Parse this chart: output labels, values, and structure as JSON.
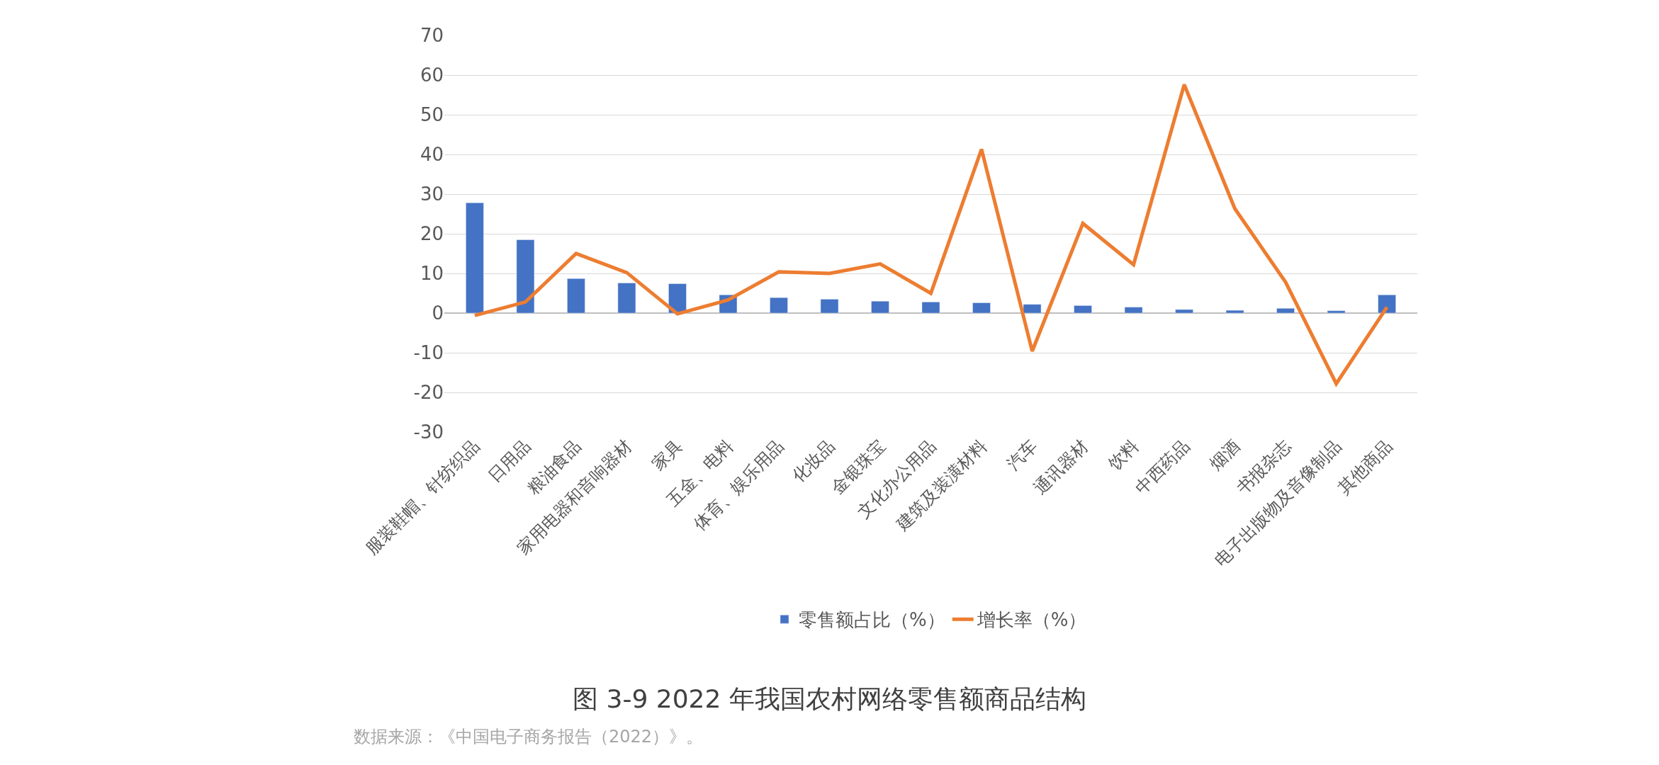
{
  "chart_data": {
    "type": "bar",
    "title": "图 3-9 2022 年我国农村网络零售额商品结构",
    "categories": [
      "服装鞋帽、针纺织品",
      "日用品",
      "粮油食品",
      "家用电器和音响器材",
      "家具",
      "五金、电料",
      "体育、娱乐用品",
      "化妆品",
      "金银珠宝",
      "文化办公用品",
      "建筑及装潢材料",
      "汽车",
      "通讯器材",
      "饮料",
      "中西药品",
      "烟酒",
      "书报杂志",
      "电子出版物及音像制品",
      "其他商品"
    ],
    "series": [
      {
        "name": "零售额占比（%）",
        "color": "#4472c4",
        "values": [
          27.8,
          18.5,
          8.7,
          7.6,
          7.4,
          4.6,
          3.9,
          3.5,
          3.0,
          2.8,
          2.6,
          2.2,
          1.9,
          1.5,
          0.9,
          0.7,
          1.2,
          0.6,
          4.6
        ]
      },
      {
        "name": "增长率（%）",
        "type": "line",
        "color": "#ed7d31",
        "marker": "none",
        "line_style": "solid",
        "values": [
          -0.6,
          2.8,
          15,
          10.2,
          -0.2,
          3.3,
          10.4,
          10,
          12.4,
          5,
          41.3,
          -9.6,
          22.6,
          12.2,
          57.6,
          26.3,
          7.8,
          -17.8,
          1.5
        ]
      }
    ],
    "ylim": [
      -30,
      70
    ],
    "yticks": [
      -30,
      -20,
      -10,
      0,
      10,
      20,
      30,
      40,
      50,
      60,
      70
    ],
    "grid": "y",
    "legend": "bottom",
    "annotations": [
      "数据来源：《中国电子商务报告（2022）》。"
    ]
  }
}
